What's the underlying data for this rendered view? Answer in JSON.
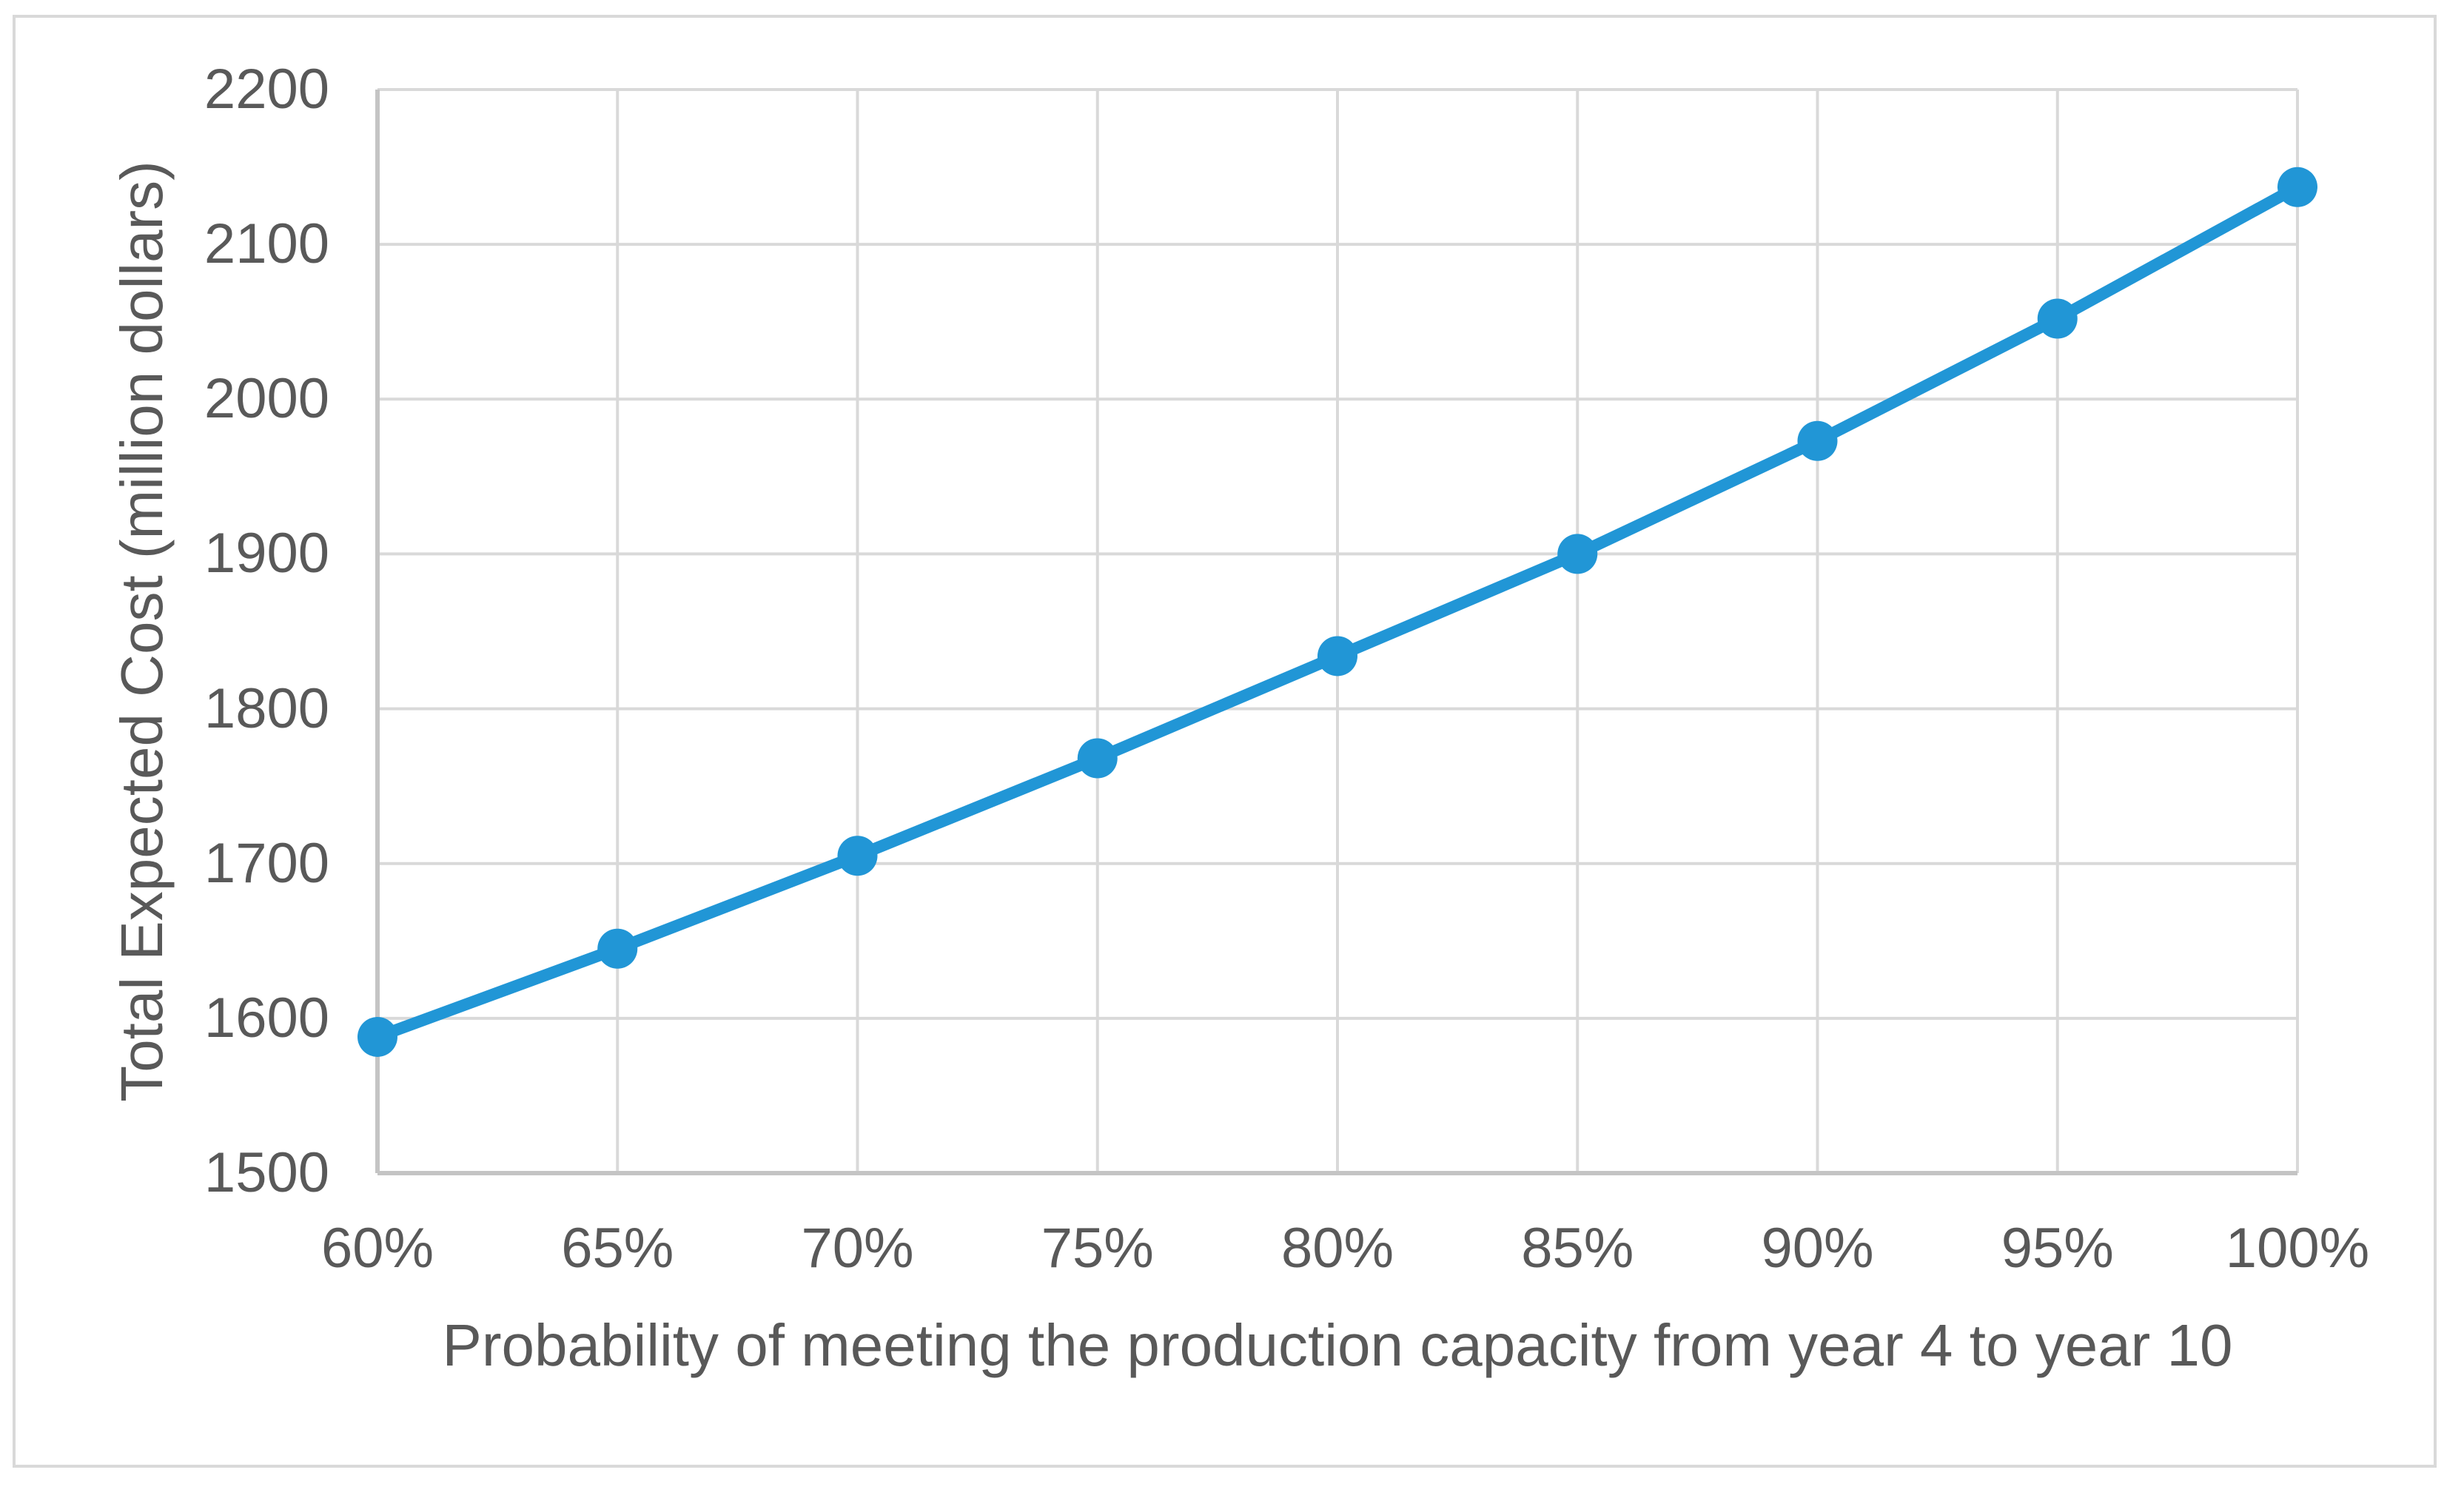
{
  "chart_data": {
    "type": "line",
    "title": "",
    "categories": [
      "60%",
      "65%",
      "70%",
      "75%",
      "80%",
      "85%",
      "90%",
      "95%",
      "100%"
    ],
    "values": [
      1588,
      1645,
      1705,
      1768,
      1834,
      1900,
      1973,
      2052,
      2137
    ],
    "series": [
      {
        "name": "",
        "values": [
          1588,
          1645,
          1705,
          1768,
          1834,
          1900,
          1973,
          2052,
          2137
        ]
      }
    ],
    "xlabel": "Probability of meeting the production capacity from year 4 to year 10",
    "ylabel": "Total Expected Cost (million dollars)",
    "ylim": [
      1500,
      2200
    ],
    "y_ticks": [
      1500,
      1600,
      1700,
      1800,
      1900,
      2000,
      2100,
      2200
    ],
    "grid": true,
    "legend": "none",
    "marker": "circle"
  },
  "colors": {
    "series_line": "#2196D6",
    "marker_fill": "#2196D6",
    "gridline": "#D9D9D9",
    "axis_line": "#C4C4C4",
    "tick_text": "#595959",
    "frame_border": "#D9D9D9",
    "background": "#FFFFFF"
  }
}
